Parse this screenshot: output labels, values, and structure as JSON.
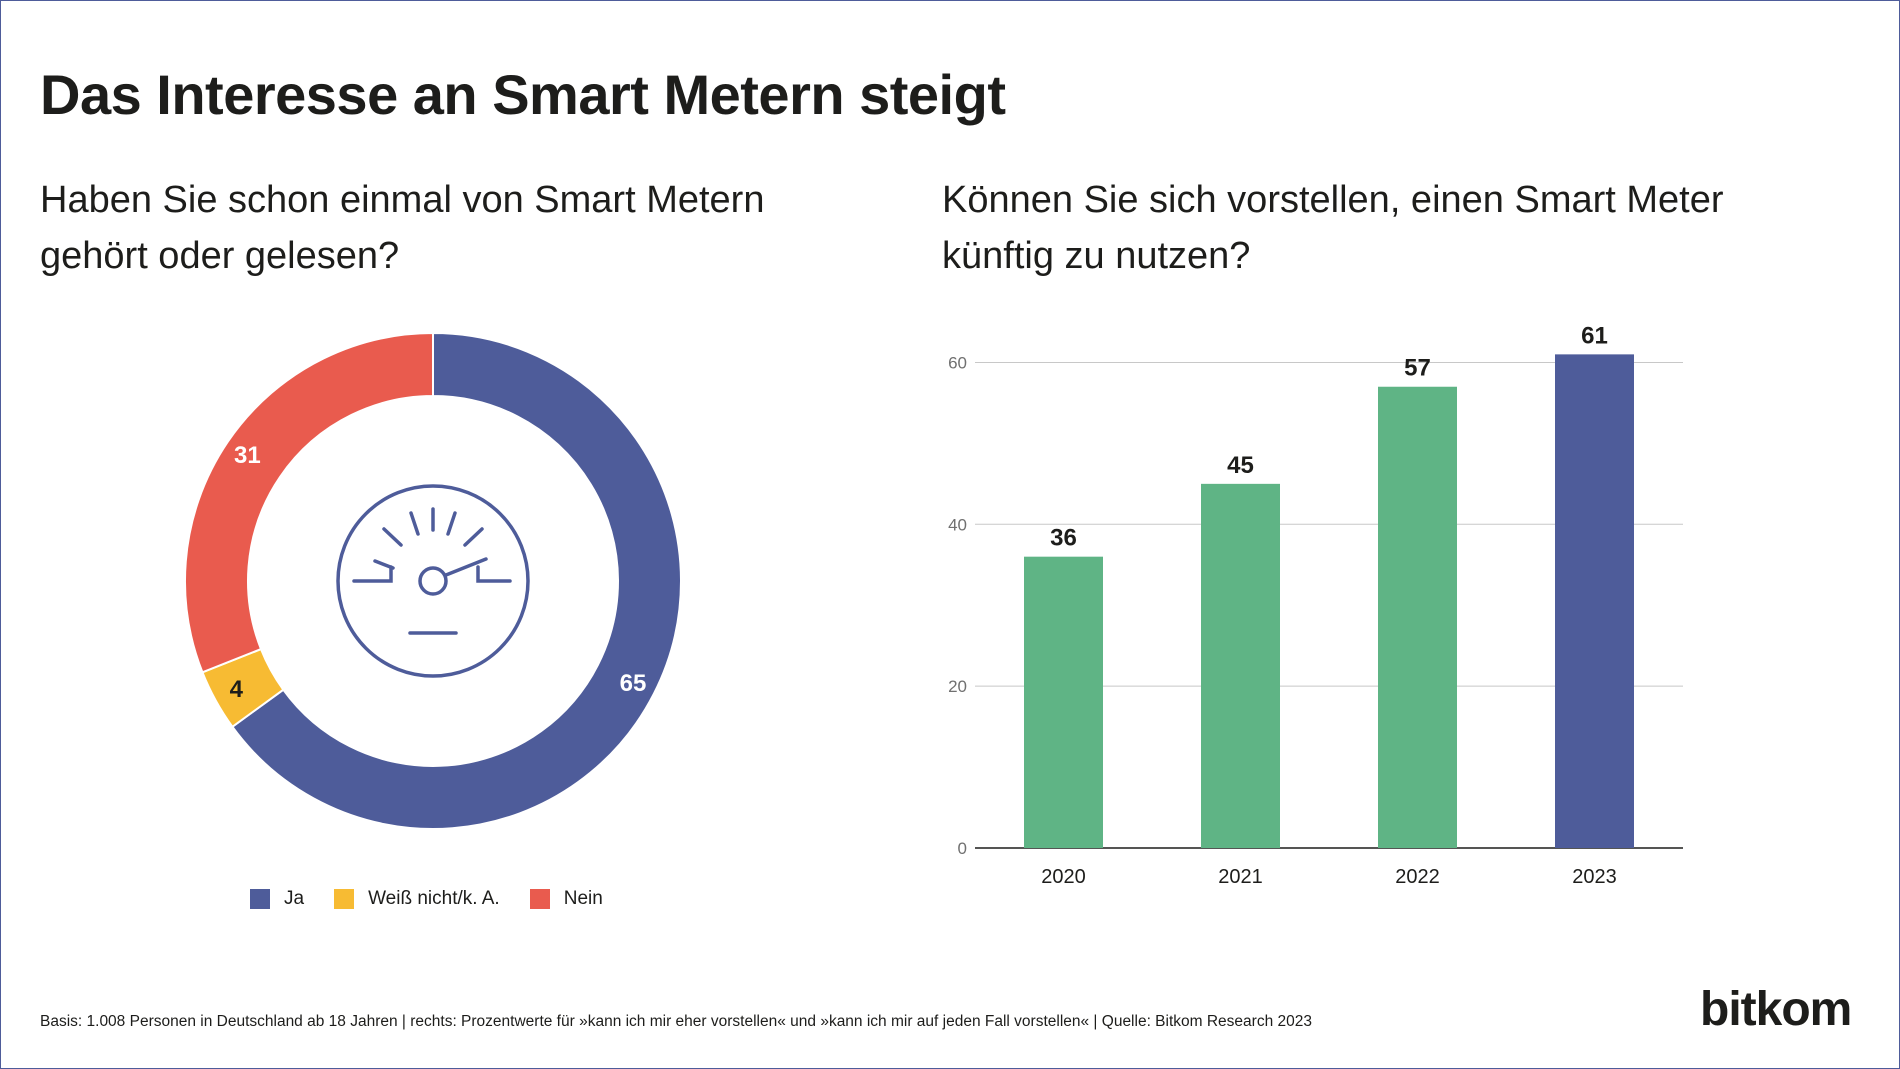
{
  "title": "Das Interesse an Smart Metern steigt",
  "subtitle_left": "Haben Sie schon einmal von Smart Metern gehört oder gelesen?",
  "subtitle_right": "Können Sie sich vorstellen, einen Smart Meter künftig zu nutzen?",
  "footnote": "Basis: 1.008 Personen in Deutschland ab 18 Jahren | rechts: Prozentwerte für »kann ich mir eher vorstellen« und »kann ich mir auf jeden Fall vorstellen« | Quelle: Bitkom Research 2023",
  "brand": "bitkom",
  "center_icon": "gauge-icon",
  "chart_data": [
    {
      "type": "pie",
      "variant": "donut",
      "categories": [
        "Ja",
        "Weiß nicht/k. A.",
        "Nein"
      ],
      "values": [
        65,
        4,
        31
      ],
      "colors": [
        "#4e5c9a",
        "#f7bb33",
        "#e95b4e"
      ],
      "legend_position": "bottom"
    },
    {
      "type": "bar",
      "categories": [
        "2020",
        "2021",
        "2022",
        "2023"
      ],
      "values": [
        36,
        45,
        57,
        61
      ],
      "colors": [
        "#5fb485",
        "#5fb485",
        "#5fb485",
        "#4e5c9a"
      ],
      "yticks": [
        0,
        20,
        40,
        60
      ],
      "ylim": [
        0,
        65
      ],
      "grid": true
    }
  ]
}
